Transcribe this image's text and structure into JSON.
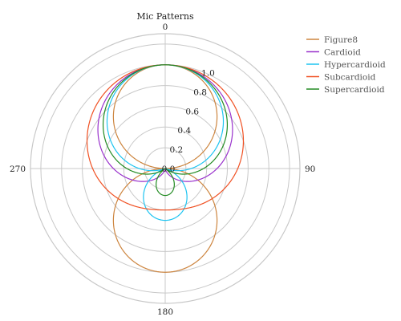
{
  "chart_data": {
    "type": "polar-line",
    "title": "Mic Patterns",
    "angular_ticks": [
      "0",
      "90",
      "180",
      "270"
    ],
    "radial_ticks": [
      "0.0",
      "0.2",
      "0.4",
      "0.6",
      "0.8",
      "1.0"
    ],
    "radial_range": [
      0,
      1.3
    ],
    "radial_tick_step": 0.2,
    "direction": "clockwise",
    "zero_location": "top",
    "grid": true,
    "legend": "top-right",
    "series": [
      {
        "name": "Figure8",
        "color": "#cd853f",
        "formula": "abs(cos(theta))"
      },
      {
        "name": "Cardioid",
        "color": "#9932cc",
        "formula": "abs(0.5 + 0.5*cos(theta))"
      },
      {
        "name": "Hypercardioid",
        "color": "#1ec4f1",
        "formula": "abs(0.25 + 0.75*cos(theta))"
      },
      {
        "name": "Subcardioid",
        "color": "#f05022",
        "formula": "abs(0.7 + 0.3*cos(theta))"
      },
      {
        "name": "Supercardioid",
        "color": "#228b22",
        "formula": "abs(0.37 + 0.63*cos(theta))"
      }
    ]
  }
}
